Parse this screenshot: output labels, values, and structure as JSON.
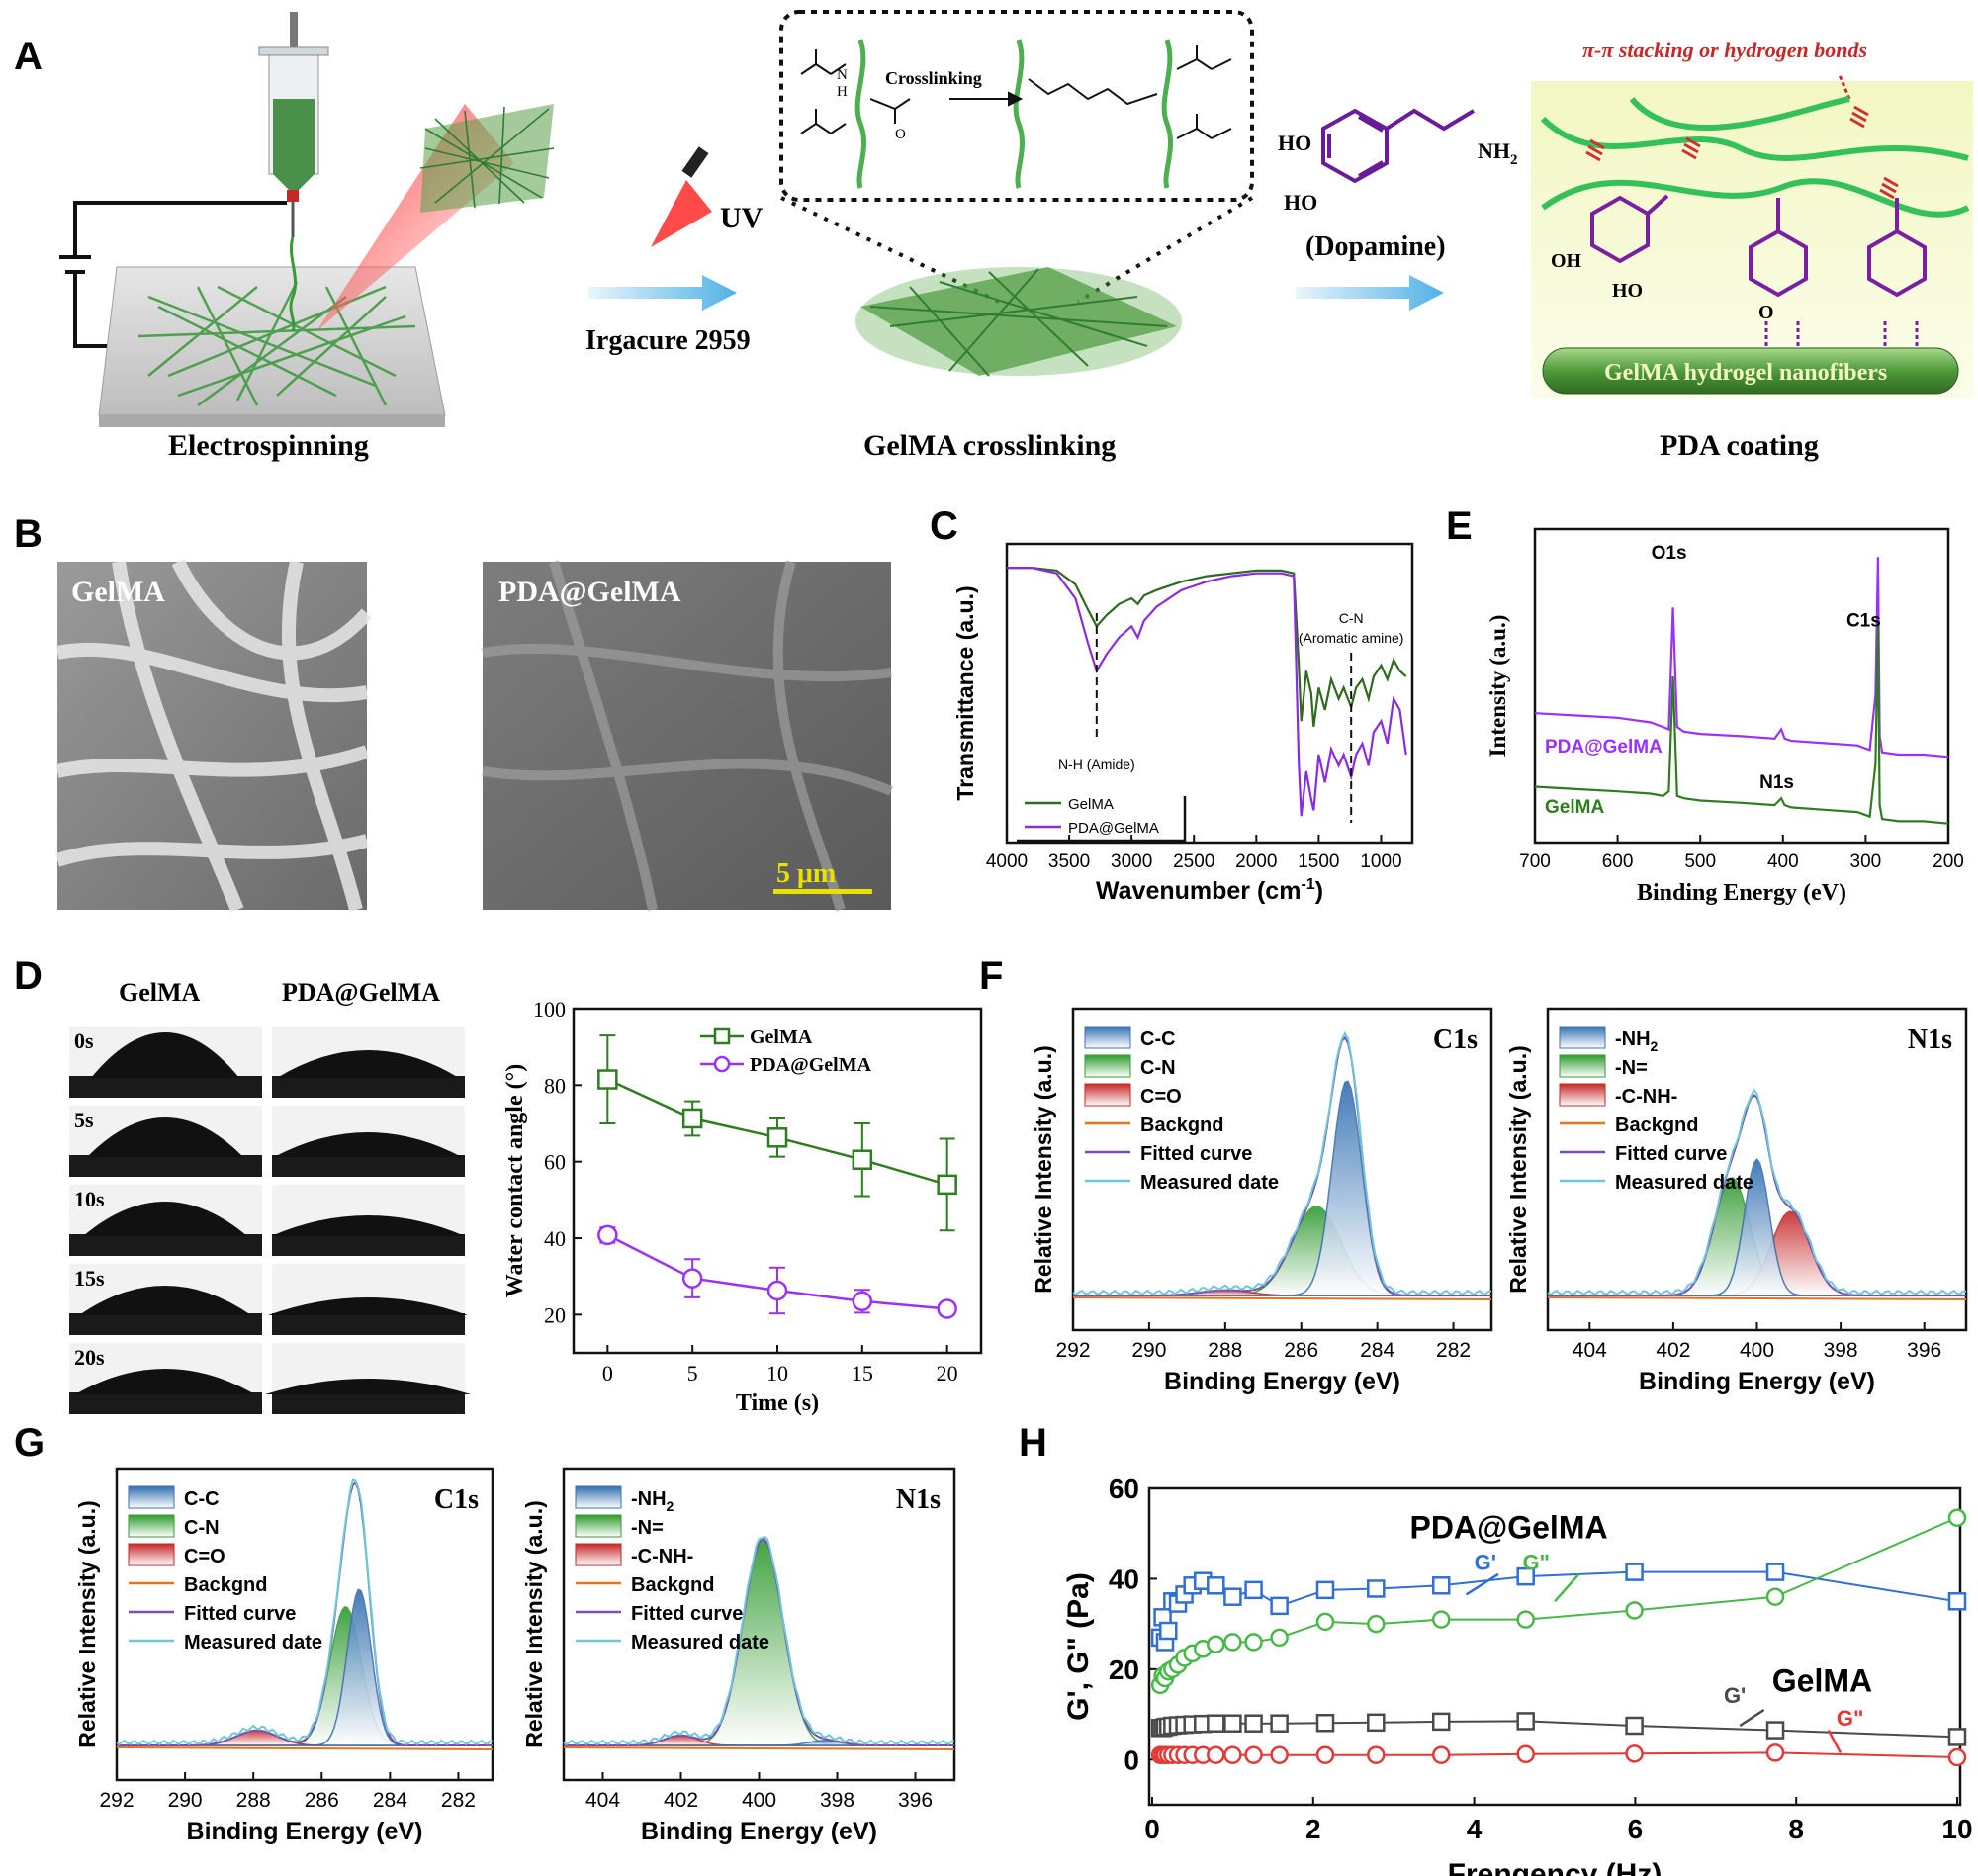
{
  "panel_labels": {
    "A": "A",
    "B": "B",
    "C": "C",
    "D": "D",
    "E": "E",
    "F": "F",
    "G": "G",
    "H": "H"
  },
  "panel_a": {
    "step1_caption": "Electrospinning",
    "uv_label": "UV",
    "initiator": "Irgacure 2959",
    "crosslinking_label": "Crosslinking",
    "step2_caption": "GelMA crosslinking",
    "dopamine_label": "(Dopamine)",
    "ho_1": "HO",
    "ho_2": "HO",
    "nh2": "NH",
    "nh2_sub": "2",
    "interaction_label": "π-π stacking or hydrogen bonds",
    "oh_label": "OH",
    "ho_label": "HO",
    "o_label": "O",
    "fiber_label": "GelMA hydrogel nanofibers",
    "step3_caption": "PDA coating",
    "nh_n": "N",
    "nh_h": "H",
    "o_carbonyl": "O"
  },
  "panel_b": {
    "left_label": "GelMA",
    "right_label": "PDA@GelMA",
    "scale_label": "5 μm",
    "scale_color": "#e8e000"
  },
  "colors": {
    "gelma": "#2e6b1f",
    "pda": "#8a2be2",
    "xps_green": "#2e7d1f",
    "xps_purple": "#9b30ff",
    "blue": "#2f6fd6",
    "green": "#48b848",
    "red": "#e53935",
    "gray": "#4a4a4a",
    "fit": "#7a4fb0",
    "meas": "#6fc8d6",
    "bg": "#e8731c"
  },
  "chart_data": [
    {
      "id": "C",
      "type": "line",
      "xlabel": "Wavenumber (cm",
      "xlabel_sup": "-1",
      "xlabel_tail": ")",
      "ylabel": "Transmittance (a.u.)",
      "xlim": [
        4000,
        750
      ],
      "xticks": [
        4000,
        3500,
        3000,
        2500,
        2000,
        1500,
        1000
      ],
      "annotations": [
        "N-H (Amide)",
        "C-N",
        "(Aromatic amine)"
      ],
      "series": [
        {
          "name": "GelMA",
          "x": [
            4000,
            3800,
            3600,
            3450,
            3350,
            3280,
            3200,
            3100,
            3000,
            2950,
            2900,
            2800,
            2600,
            2400,
            2200,
            2000,
            1900,
            1800,
            1700,
            1660,
            1640,
            1600,
            1560,
            1540,
            1500,
            1450,
            1400,
            1340,
            1300,
            1240,
            1200,
            1150,
            1100,
            1060,
            1000,
            950,
            900,
            850,
            800
          ],
          "y": [
            95,
            95,
            94,
            89,
            80,
            74,
            78,
            82,
            84,
            82,
            85,
            87,
            90,
            92,
            93,
            94,
            94,
            94,
            93,
            60,
            40,
            58,
            50,
            38,
            52,
            44,
            55,
            48,
            52,
            45,
            52,
            55,
            48,
            56,
            60,
            55,
            62,
            58,
            56
          ]
        },
        {
          "name": "PDA@GelMA",
          "x": [
            4000,
            3800,
            3600,
            3450,
            3350,
            3280,
            3200,
            3100,
            3000,
            2950,
            2900,
            2800,
            2600,
            2400,
            2200,
            2000,
            1900,
            1800,
            1700,
            1660,
            1640,
            1600,
            1560,
            1540,
            1500,
            1450,
            1400,
            1340,
            1300,
            1240,
            1200,
            1150,
            1100,
            1060,
            1000,
            950,
            900,
            850,
            800
          ],
          "y": [
            95,
            95,
            93,
            84,
            68,
            58,
            64,
            70,
            74,
            70,
            76,
            81,
            87,
            90,
            92,
            93,
            93,
            93,
            92,
            25,
            6,
            22,
            12,
            8,
            28,
            18,
            30,
            24,
            28,
            20,
            28,
            32,
            24,
            36,
            40,
            32,
            48,
            44,
            28
          ]
        }
      ]
    },
    {
      "id": "E",
      "type": "line",
      "xlabel": "Binding Energy (eV)",
      "ylabel": "Intensity (a.u.)",
      "xlim": [
        700,
        200
      ],
      "xticks": [
        700,
        600,
        500,
        400,
        300,
        200
      ],
      "peak_labels": [
        "O1s",
        "C1s",
        "N1s"
      ],
      "series": [
        {
          "name": "PDA@GelMA",
          "x": [
            700,
            650,
            600,
            560,
            545,
            538,
            533,
            528,
            520,
            500,
            450,
            410,
            402,
            398,
            390,
            350,
            310,
            295,
            288,
            285,
            283,
            280,
            260,
            230,
            200
          ],
          "y": [
            52,
            51,
            50,
            48,
            46,
            45,
            98,
            46,
            44,
            43,
            42,
            41,
            45,
            41,
            40,
            39,
            38,
            36,
            60,
            120,
            42,
            35,
            34,
            34,
            33
          ]
        },
        {
          "name": "GelMA",
          "x": [
            700,
            650,
            600,
            560,
            545,
            538,
            533,
            528,
            520,
            500,
            450,
            410,
            402,
            398,
            390,
            350,
            310,
            295,
            288,
            285,
            283,
            280,
            260,
            230,
            200
          ],
          "y": [
            20,
            19,
            18,
            17,
            16,
            18,
            68,
            16,
            15,
            14,
            13,
            12,
            15,
            12,
            11,
            10,
            9,
            7,
            30,
            90,
            12,
            6,
            5,
            5,
            4
          ]
        }
      ]
    },
    {
      "id": "D",
      "type": "line",
      "xlabel": "Time (s)",
      "ylabel": "Water contact angle (°)",
      "xlim": [
        -2,
        22
      ],
      "ylim": [
        10,
        100
      ],
      "xticks": [
        0,
        5,
        10,
        15,
        20
      ],
      "yticks": [
        20,
        40,
        60,
        80,
        100
      ],
      "series": [
        {
          "name": "GelMA",
          "x": [
            0,
            5,
            10,
            15,
            20
          ],
          "y": [
            81.5,
            71.3,
            66.3,
            60.5,
            54.0
          ],
          "err": [
            11.5,
            4.5,
            5,
            9.5,
            12
          ]
        },
        {
          "name": "PDA@GelMA",
          "x": [
            0,
            5,
            10,
            15,
            20
          ],
          "y": [
            40.8,
            29.5,
            26.3,
            23.5,
            21.5
          ],
          "err": [
            2,
            5,
            6,
            3,
            1.5
          ]
        }
      ],
      "droplet_labels": {
        "col1": "GelMA",
        "col2": "PDA@GelMA",
        "times": [
          "0s",
          "5s",
          "10s",
          "15s",
          "20s"
        ]
      }
    },
    {
      "id": "F-C1s",
      "type": "area",
      "title": "C1s",
      "xlabel": "Binding Energy (eV)",
      "ylabel": "Relative Intensity (a.u.)",
      "xlim": [
        292,
        281
      ],
      "xticks": [
        292,
        290,
        288,
        286,
        284,
        282
      ],
      "legend": [
        "C-C",
        "C-N",
        "C=O",
        "Backgnd",
        "Fitted curve",
        "Measured date"
      ],
      "components": [
        {
          "name": "C-C",
          "center": 284.8,
          "height": 0.82,
          "width": 0.55
        },
        {
          "name": "C-N",
          "center": 285.6,
          "height": 0.34,
          "width": 0.9
        },
        {
          "name": "C=O",
          "center": 288.0,
          "height": 0.02,
          "width": 0.9
        }
      ]
    },
    {
      "id": "F-N1s",
      "type": "area",
      "title": "N1s",
      "xlabel": "Binding Energy (eV)",
      "ylabel": "Relative Intensity (a.u.)",
      "xlim": [
        405,
        395
      ],
      "xticks": [
        404,
        402,
        400,
        398,
        396
      ],
      "legend": [
        "-NH",
        "-N=",
        "-C-NH-",
        "Backgnd",
        "Fitted curve",
        "Measured date"
      ],
      "legend_sub": "2",
      "components": [
        {
          "name": "-NH2",
          "center": 400.0,
          "height": 0.52,
          "width": 0.42
        },
        {
          "name": "-N=",
          "center": 400.6,
          "height": 0.45,
          "width": 0.6
        },
        {
          "name": "-C-NH-",
          "center": 399.2,
          "height": 0.32,
          "width": 0.65
        }
      ]
    },
    {
      "id": "G-C1s",
      "type": "area",
      "title": "C1s",
      "xlabel": "Binding Energy (eV)",
      "ylabel": "Relative Intensity (a.u.)",
      "xlim": [
        292,
        281
      ],
      "xticks": [
        292,
        290,
        288,
        286,
        284,
        282
      ],
      "legend": [
        "C-C",
        "C-N",
        "C=O",
        "Backgnd",
        "Fitted curve",
        "Measured date"
      ],
      "components": [
        {
          "name": "C-C",
          "center": 284.9,
          "height": 0.62,
          "width": 0.5
        },
        {
          "name": "C-N",
          "center": 285.3,
          "height": 0.55,
          "width": 0.65
        },
        {
          "name": "C=O",
          "center": 287.9,
          "height": 0.06,
          "width": 0.85
        }
      ]
    },
    {
      "id": "G-N1s",
      "type": "area",
      "title": "N1s",
      "xlabel": "Binding Energy (eV)",
      "ylabel": "Relative Intensity (a.u.)",
      "xlim": [
        405,
        395
      ],
      "xticks": [
        404,
        402,
        400,
        398,
        396
      ],
      "legend": [
        "-NH",
        "-N=",
        "-C-NH-",
        "Backgnd",
        "Fitted curve",
        "Measured date"
      ],
      "legend_sub": "2",
      "components": [
        {
          "name": "-NH2",
          "center": 398.3,
          "height": 0.02,
          "width": 0.6
        },
        {
          "name": "-N=",
          "center": 399.9,
          "height": 0.82,
          "width": 0.72
        },
        {
          "name": "-C-NH-",
          "center": 402.0,
          "height": 0.04,
          "width": 0.6
        }
      ]
    },
    {
      "id": "H",
      "type": "scatter",
      "xlabel": "Frenqency (Hz)",
      "ylabel": "G', G\" (Pa)",
      "xlim": [
        0,
        10
      ],
      "ylim": [
        -10,
        60
      ],
      "xticks": [
        0,
        2,
        4,
        6,
        8,
        10
      ],
      "yticks": [
        0,
        20,
        40,
        60
      ],
      "annotations": {
        "pda": "PDA@GelMA",
        "gelma": "GelMA",
        "gp": "G'",
        "gpp": "G\""
      },
      "series": [
        {
          "name": "PDA@GelMA G'",
          "x": [
            0.1,
            0.13,
            0.16,
            0.2,
            0.25,
            0.32,
            0.4,
            0.5,
            0.63,
            0.79,
            1.0,
            1.26,
            1.58,
            2.15,
            2.78,
            3.59,
            4.64,
            5.99,
            7.74,
            10
          ],
          "y": [
            27,
            31.5,
            26,
            28.5,
            35,
            34.5,
            36.5,
            38.5,
            39.5,
            38.5,
            36,
            37.5,
            34,
            37.5,
            37.8,
            38.5,
            40.5,
            41.5,
            41.5,
            35
          ]
        },
        {
          "name": "PDA@GelMA G\"",
          "x": [
            0.1,
            0.13,
            0.16,
            0.2,
            0.25,
            0.32,
            0.4,
            0.5,
            0.63,
            0.79,
            1.0,
            1.26,
            1.58,
            2.15,
            2.78,
            3.59,
            4.64,
            5.99,
            7.74,
            10
          ],
          "y": [
            16.5,
            18.5,
            18,
            19.5,
            20,
            21,
            22.5,
            23.5,
            24.5,
            25.5,
            26,
            26,
            27,
            30.5,
            30,
            31,
            31,
            33,
            36,
            53.5
          ]
        },
        {
          "name": "GelMA G'",
          "x": [
            0.1,
            0.13,
            0.16,
            0.2,
            0.25,
            0.32,
            0.4,
            0.5,
            0.63,
            0.79,
            1.0,
            1.26,
            1.58,
            2.15,
            2.78,
            3.59,
            4.64,
            5.99,
            7.74,
            10
          ],
          "y": [
            7,
            7,
            7.2,
            7.3,
            7.5,
            7.6,
            7.7,
            7.8,
            7.9,
            8,
            8,
            8,
            8,
            8.1,
            8.2,
            8.4,
            8.5,
            7.5,
            6.5,
            5
          ]
        },
        {
          "name": "GelMA G\"",
          "x": [
            0.1,
            0.13,
            0.16,
            0.2,
            0.25,
            0.32,
            0.4,
            0.5,
            0.63,
            0.79,
            1.0,
            1.26,
            1.58,
            2.15,
            2.78,
            3.59,
            4.64,
            5.99,
            7.74,
            10
          ],
          "y": [
            1,
            1,
            1,
            1,
            1,
            1,
            1,
            1,
            1,
            1,
            1,
            1,
            1,
            1,
            1,
            1,
            1.2,
            1.3,
            1.5,
            0.5
          ]
        }
      ]
    }
  ]
}
